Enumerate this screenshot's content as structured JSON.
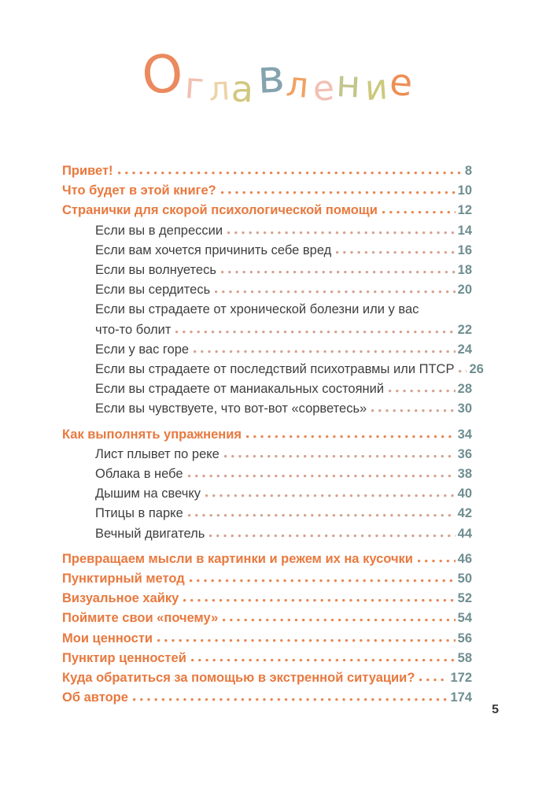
{
  "title": {
    "text": "Оглавление",
    "letters": [
      {
        "ch": "О",
        "color": "#EA8A5E"
      },
      {
        "ch": "г",
        "color": "#F2BFB2"
      },
      {
        "ch": "л",
        "color": "#ECD3A6"
      },
      {
        "ch": "а",
        "color": "#D2C77F"
      },
      {
        "ch": "в",
        "color": "#85A3AE"
      },
      {
        "ch": "л",
        "color": "#F0A263"
      },
      {
        "ch": "е",
        "color": "#F2C0B4"
      },
      {
        "ch": "н",
        "color": "#C2C68C"
      },
      {
        "ch": "и",
        "color": "#CCC97E"
      },
      {
        "ch": "е",
        "color": "#ED8F55"
      }
    ]
  },
  "toc": {
    "entries": [
      {
        "label": "Привет!",
        "page": "8",
        "level": 0
      },
      {
        "label": "Что будет в этой книге?",
        "page": "10",
        "level": 0
      },
      {
        "label": "Странички для скорой психологической помощи",
        "page": "12",
        "level": 0
      },
      {
        "label": "Если вы в депрессии",
        "page": "14",
        "level": 1
      },
      {
        "label": "Если вам хочется причинить себе вред",
        "page": "16",
        "level": 1
      },
      {
        "label": "Если вы волнуетесь",
        "page": "18",
        "level": 1
      },
      {
        "label": "Если вы сердитесь",
        "page": "20",
        "level": 1
      },
      {
        "label_line1": "Если вы страдаете от хронической болезни или у вас",
        "label": "что-то болит",
        "page": "22",
        "level": 1
      },
      {
        "label": "Если у вас горе",
        "page": "24",
        "level": 1
      },
      {
        "label": "Если вы страдаете от последствий психотравмы или ПТСР",
        "page": "26",
        "level": 1
      },
      {
        "label": "Если вы страдаете от маниакальных состояний",
        "page": "28",
        "level": 1
      },
      {
        "label": "Если вы чувствуете, что вот-вот «сорветесь»",
        "page": "30",
        "level": 1
      },
      {
        "label": "Как выполнять упражнения",
        "page": "34",
        "level": 0,
        "gap": true
      },
      {
        "label": "Лист плывет по реке",
        "page": "36",
        "level": 1
      },
      {
        "label": "Облака в небе",
        "page": "38",
        "level": 1
      },
      {
        "label": "Дышим на свечку",
        "page": "40",
        "level": 1
      },
      {
        "label": "Птицы в парке",
        "page": "42",
        "level": 1
      },
      {
        "label": "Вечный двигатель",
        "page": "44",
        "level": 1
      },
      {
        "label": "Превращаем мысли в картинки и режем их на кусочки",
        "page": "46",
        "level": 0,
        "gap": true
      },
      {
        "label": "Пунктирный метод",
        "page": "50",
        "level": 0
      },
      {
        "label": "Визуальное хайку",
        "page": "52",
        "level": 0
      },
      {
        "label": "Поймите свои «почему»",
        "page": "54",
        "level": 0
      },
      {
        "label": "Мои ценности",
        "page": "56",
        "level": 0
      },
      {
        "label": "Пунктир ценностей",
        "page": "58",
        "level": 0
      },
      {
        "label": "Куда обратиться за помощью в экстренной ситуации?",
        "page": "172",
        "level": 0
      },
      {
        "label": "Об авторе",
        "page": "174",
        "level": 0
      }
    ]
  },
  "footer": {
    "page_number": "5"
  },
  "colors": {
    "accent_orange": "#E8793F",
    "text_dark": "#3E3E3E",
    "page_number": "#6F8E90",
    "dot_main": "#E8854F",
    "dot_sub": "#D5A18C",
    "footer_color": "#3A3A3A"
  }
}
